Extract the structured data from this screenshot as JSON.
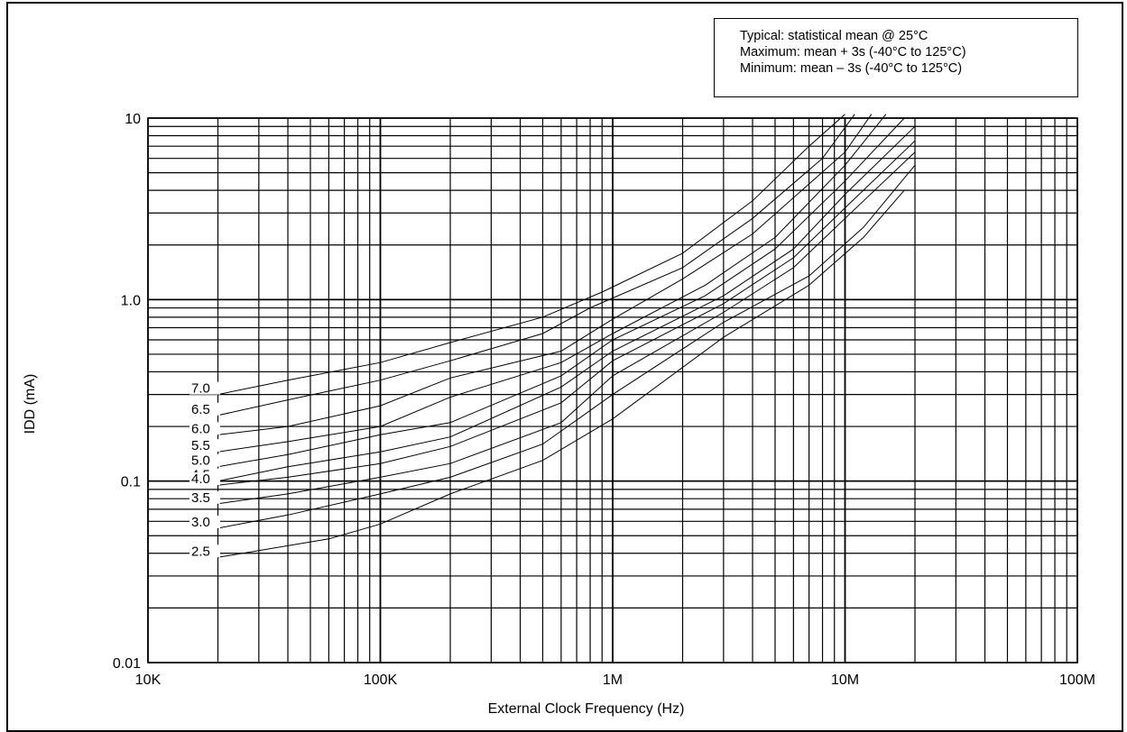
{
  "note": {
    "lines": [
      "Typical:  statistical mean @ 25°C",
      "Maximum:  mean + 3s (-40°C to 125°C)",
      "Minimum:   mean – 3s (-40°C to 125°C)"
    ]
  },
  "chart_data": {
    "type": "line",
    "title": "",
    "xlabel": "External Clock Frequency (Hz)",
    "ylabel": "IDD (mA)",
    "xscale": "log",
    "yscale": "log",
    "xlim": [
      10000,
      100000000
    ],
    "ylim": [
      0.01,
      10
    ],
    "grid": true,
    "xticks": [
      {
        "value": 10000,
        "label": "10K"
      },
      {
        "value": 100000,
        "label": "100K"
      },
      {
        "value": 1000000,
        "label": "1M"
      },
      {
        "value": 10000000,
        "label": "10M"
      },
      {
        "value": 100000000,
        "label": "100M"
      }
    ],
    "yticks": [
      {
        "value": 0.01,
        "label": "0.01"
      },
      {
        "value": 0.1,
        "label": "0.1"
      },
      {
        "value": 1,
        "label": "1.0"
      },
      {
        "value": 10,
        "label": "10"
      }
    ],
    "series": [
      {
        "name": "7.0",
        "x": [
          20000,
          40000,
          100000,
          200000,
          500000,
          900000,
          2000000,
          4000000,
          7000000,
          10000000
        ],
        "y": [
          0.3,
          0.36,
          0.45,
          0.58,
          0.8,
          1.1,
          1.8,
          3.5,
          7.0,
          10.5
        ]
      },
      {
        "name": "6.5",
        "x": [
          20000,
          40000,
          100000,
          200000,
          500000,
          800000,
          2000000,
          4000000,
          8000000,
          11000000
        ],
        "y": [
          0.23,
          0.28,
          0.36,
          0.46,
          0.65,
          0.9,
          1.5,
          2.8,
          6.0,
          10.5
        ]
      },
      {
        "name": "6.0",
        "x": [
          20000,
          40000,
          100000,
          200000,
          600000,
          1000000,
          2000000,
          4000000,
          10000000,
          13000000
        ],
        "y": [
          0.18,
          0.2,
          0.26,
          0.37,
          0.52,
          0.78,
          1.3,
          2.3,
          6.5,
          10.5
        ]
      },
      {
        "name": "5.5",
        "x": [
          20000,
          40000,
          100000,
          200000,
          600000,
          1000000,
          2500000,
          5000000,
          10000000,
          15000000
        ],
        "y": [
          0.145,
          0.165,
          0.2,
          0.29,
          0.45,
          0.65,
          1.2,
          2.2,
          5.5,
          10.5
        ]
      },
      {
        "name": "5.0",
        "x": [
          20000,
          40000,
          100000,
          200000,
          600000,
          1000000,
          2500000,
          5000000,
          10000000,
          18000000
        ],
        "y": [
          0.12,
          0.14,
          0.18,
          0.21,
          0.38,
          0.6,
          1.05,
          1.9,
          4.5,
          10.0
        ]
      },
      {
        "name": "4.5",
        "x": [
          20000,
          40000,
          100000,
          200000,
          600000,
          1000000,
          3000000,
          6000000,
          10000000,
          20000000
        ],
        "y": [
          0.1,
          0.12,
          0.145,
          0.175,
          0.33,
          0.52,
          1.05,
          1.9,
          3.8,
          9.0
        ]
      },
      {
        "name": "4.0",
        "x": [
          20000,
          40000,
          100000,
          200000,
          600000,
          1000000,
          3000000,
          6000000,
          10000000,
          20000000
        ],
        "y": [
          0.095,
          0.105,
          0.125,
          0.155,
          0.27,
          0.46,
          0.95,
          1.7,
          3.2,
          7.5
        ]
      },
      {
        "name": "3.5",
        "x": [
          20000,
          40000,
          100000,
          200000,
          600000,
          1000000,
          3000000,
          6000000,
          10000000,
          20000000
        ],
        "y": [
          0.075,
          0.085,
          0.105,
          0.125,
          0.21,
          0.38,
          0.85,
          1.5,
          2.8,
          6.5
        ]
      },
      {
        "name": "3.0",
        "x": [
          20000,
          40000,
          100000,
          200000,
          500000,
          1000000,
          3000000,
          7000000,
          12000000,
          20000000
        ],
        "y": [
          0.055,
          0.065,
          0.085,
          0.105,
          0.16,
          0.3,
          0.75,
          1.35,
          2.5,
          5.5
        ]
      },
      {
        "name": "2.5",
        "x": [
          20000,
          60000,
          100000,
          200000,
          500000,
          1000000,
          3000000,
          7000000,
          12000000,
          18000000
        ],
        "y": [
          0.038,
          0.048,
          0.058,
          0.085,
          0.13,
          0.22,
          0.62,
          1.2,
          2.2,
          4.0
        ]
      }
    ]
  }
}
